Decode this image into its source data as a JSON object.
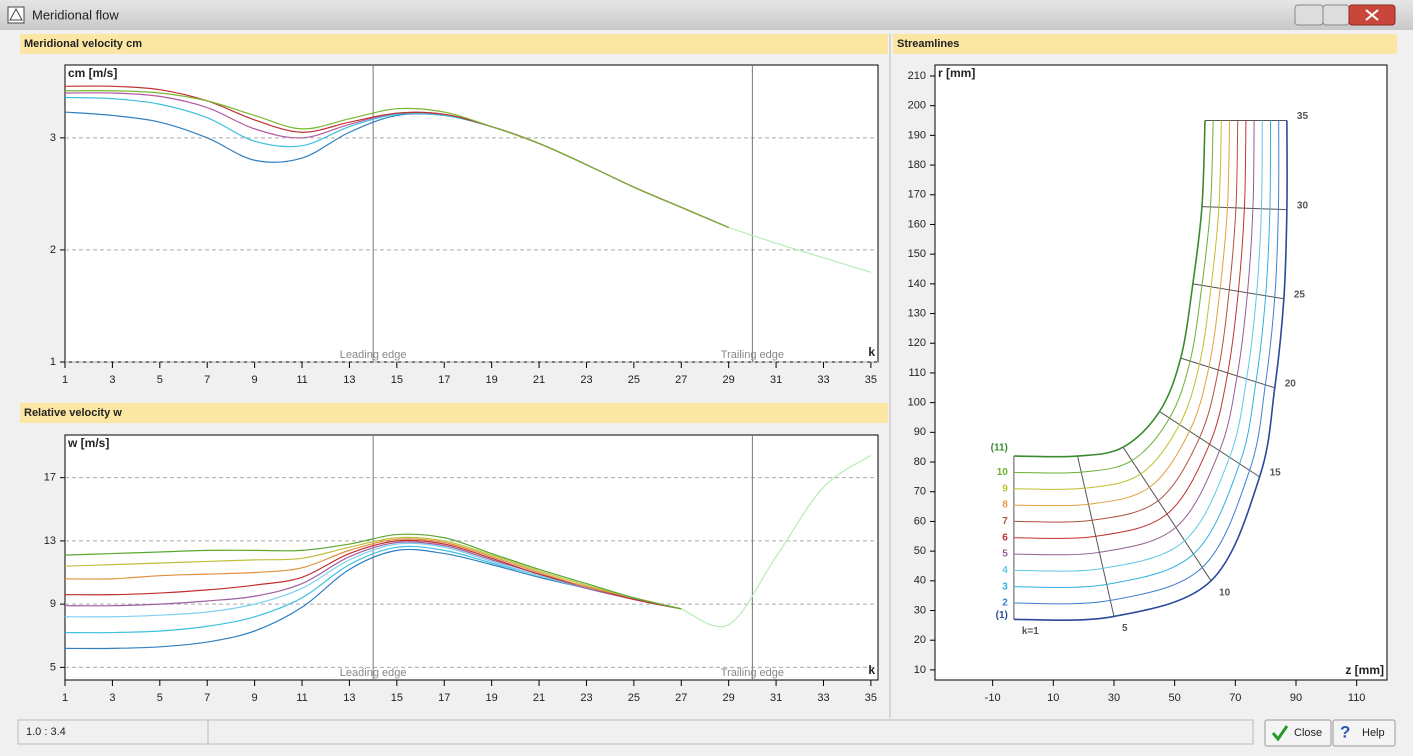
{
  "window": {
    "title": "Meridional flow",
    "status": "1.0 : 3.4",
    "buttons": [
      "Close",
      "Help"
    ]
  },
  "chart_data": [
    {
      "type": "line",
      "title": "Meridional velocity  cm",
      "y_label": "cm [m/s]",
      "x_label": "k",
      "x": [
        1,
        3,
        5,
        7,
        9,
        11,
        13,
        15,
        17,
        19,
        21,
        23,
        25,
        27,
        29,
        31,
        33,
        35
      ],
      "xlim": [
        1,
        35.3
      ],
      "xticks": [
        1,
        3,
        5,
        7,
        9,
        11,
        13,
        15,
        17,
        19,
        21,
        23,
        25,
        27,
        29,
        31,
        33,
        35
      ],
      "ylim": [
        1,
        3.65
      ],
      "yticks": [
        1,
        2,
        3
      ],
      "grid": true,
      "annotations": [
        {
          "x": 14,
          "label": "Leading edge"
        },
        {
          "x": 30,
          "label": "Trailing edge"
        }
      ],
      "series": [
        {
          "color": "#2f7fc1",
          "values": [
            3.23,
            3.2,
            3.14,
            3.0,
            2.8,
            2.82,
            3.05,
            3.2,
            3.2,
            3.1,
            2.95,
            2.76,
            2.56,
            2.38,
            2.2,
            null,
            null,
            null
          ]
        },
        {
          "color": "#3fc0e0",
          "values": [
            3.36,
            3.35,
            3.3,
            3.18,
            2.97,
            2.93,
            3.1,
            3.21,
            3.2,
            3.1,
            2.95,
            2.76,
            2.56,
            2.38,
            2.2,
            null,
            null,
            null
          ]
        },
        {
          "color": "#b05aa0",
          "values": [
            3.4,
            3.4,
            3.37,
            3.27,
            3.08,
            3.0,
            3.12,
            3.22,
            3.21,
            3.1,
            2.95,
            2.76,
            2.56,
            2.38,
            2.2,
            null,
            null,
            null
          ]
        },
        {
          "color": "#c03030",
          "values": [
            3.46,
            3.46,
            3.43,
            3.33,
            3.16,
            3.05,
            3.14,
            3.22,
            3.21,
            3.1,
            2.95,
            2.76,
            2.56,
            2.38,
            2.2,
            null,
            null,
            null
          ]
        },
        {
          "color": "#7ab830",
          "values": [
            3.42,
            3.42,
            3.4,
            3.33,
            3.2,
            3.08,
            3.17,
            3.26,
            3.23,
            3.1,
            2.95,
            2.76,
            2.56,
            2.38,
            2.2,
            null,
            null,
            null
          ]
        },
        {
          "color": "#b8ecb8",
          "values": [
            null,
            null,
            null,
            null,
            null,
            null,
            null,
            null,
            null,
            null,
            null,
            null,
            null,
            null,
            2.2,
            2.06,
            1.93,
            1.8
          ]
        }
      ]
    },
    {
      "type": "line",
      "title": "Relative velocity  w",
      "y_label": "w [m/s]",
      "x_label": "k",
      "x": [
        1,
        3,
        5,
        7,
        9,
        11,
        13,
        15,
        17,
        19,
        21,
        23,
        25,
        27,
        29,
        31,
        33,
        35
      ],
      "xlim": [
        1,
        35.3
      ],
      "xticks": [
        1,
        3,
        5,
        7,
        9,
        11,
        13,
        15,
        17,
        19,
        21,
        23,
        25,
        27,
        29,
        31,
        33,
        35
      ],
      "ylim": [
        4.2,
        19.7
      ],
      "yticks": [
        5,
        9,
        13,
        17
      ],
      "grid": true,
      "annotations": [
        {
          "x": 14,
          "label": "Leading edge"
        },
        {
          "x": 30,
          "label": "Trailing edge"
        }
      ],
      "series": [
        {
          "color": "#2f7fc1",
          "values": [
            6.2,
            6.2,
            6.3,
            6.6,
            7.3,
            8.8,
            11.2,
            12.4,
            12.2,
            11.5,
            10.7,
            10.0,
            9.3,
            8.7,
            null,
            null,
            null,
            null
          ]
        },
        {
          "color": "#3fc0e0",
          "values": [
            7.2,
            7.2,
            7.3,
            7.6,
            8.2,
            9.4,
            11.5,
            12.6,
            12.4,
            11.6,
            10.8,
            10.0,
            9.3,
            8.7,
            null,
            null,
            null,
            null
          ]
        },
        {
          "color": "#7fd0f0",
          "values": [
            8.2,
            8.2,
            8.3,
            8.5,
            9.0,
            10.0,
            11.8,
            12.8,
            12.6,
            11.7,
            10.8,
            10.0,
            9.3,
            8.7,
            null,
            null,
            null,
            null
          ]
        },
        {
          "color": "#a060a0",
          "values": [
            8.9,
            8.9,
            9.0,
            9.2,
            9.5,
            10.3,
            12.0,
            12.9,
            12.7,
            11.8,
            10.9,
            10.0,
            9.3,
            8.7,
            null,
            null,
            null,
            null
          ]
        },
        {
          "color": "#c03030",
          "values": [
            9.6,
            9.6,
            9.7,
            9.9,
            10.2,
            10.7,
            12.2,
            13.0,
            12.8,
            11.9,
            10.9,
            10.1,
            9.3,
            8.7,
            null,
            null,
            null,
            null
          ]
        },
        {
          "color": "#e09040",
          "values": [
            10.6,
            10.6,
            10.8,
            10.9,
            11.0,
            11.3,
            12.4,
            13.1,
            12.9,
            12.0,
            11.0,
            10.1,
            9.4,
            8.7,
            null,
            null,
            null,
            null
          ]
        },
        {
          "color": "#c0c040",
          "values": [
            11.4,
            11.5,
            11.6,
            11.7,
            11.8,
            11.9,
            12.6,
            13.2,
            13.0,
            12.1,
            11.1,
            10.2,
            9.4,
            8.7,
            null,
            null,
            null,
            null
          ]
        },
        {
          "color": "#5aa830",
          "values": [
            12.1,
            12.2,
            12.3,
            12.4,
            12.4,
            12.4,
            12.8,
            13.4,
            13.2,
            12.2,
            11.2,
            10.3,
            9.4,
            8.7,
            null,
            null,
            null,
            null
          ]
        },
        {
          "color": "#b8ecb8",
          "values": [
            null,
            null,
            null,
            null,
            null,
            null,
            null,
            null,
            null,
            null,
            null,
            null,
            null,
            8.7,
            7.7,
            12.0,
            16.4,
            18.4
          ]
        }
      ]
    },
    {
      "type": "mesh",
      "title": "Streamlines",
      "y_label": "r [mm]",
      "x_label": "z [mm]",
      "xlim": [
        -29,
        120
      ],
      "xticks": [
        -10,
        10,
        30,
        50,
        70,
        90,
        110
      ],
      "ylim": [
        6.6,
        213.7
      ],
      "yticks": [
        10,
        20,
        30,
        40,
        50,
        60,
        70,
        80,
        90,
        100,
        110,
        120,
        130,
        140,
        150,
        160,
        170,
        180,
        190,
        200,
        210
      ],
      "stations": [
        1,
        5,
        10,
        15,
        20,
        25,
        30,
        35
      ],
      "station_labels": [
        "k=1",
        "5",
        "10",
        "15",
        "20",
        "25",
        "30",
        "35"
      ],
      "hub": {
        "z": [
          -3,
          30,
          62,
          78,
          83,
          86,
          87,
          87
        ],
        "r": [
          27,
          28,
          40,
          75,
          105,
          135,
          165,
          195
        ]
      },
      "shroud": {
        "z": [
          -3,
          18,
          33,
          45,
          52,
          56,
          59,
          60
        ],
        "r": [
          82,
          82,
          85,
          97,
          115,
          140,
          166,
          195
        ]
      },
      "streamline_labels": [
        "(1)",
        "2",
        "3",
        "4",
        "5",
        "6",
        "7",
        "8",
        "9",
        "10",
        "(11)"
      ],
      "streamline_colors": [
        "#2a4a9a",
        "#3f7fd0",
        "#30b0e0",
        "#60c8e8",
        "#906090",
        "#c03030",
        "#b05040",
        "#e0a040",
        "#c0c030",
        "#6ab030",
        "#3a8a30"
      ]
    }
  ]
}
